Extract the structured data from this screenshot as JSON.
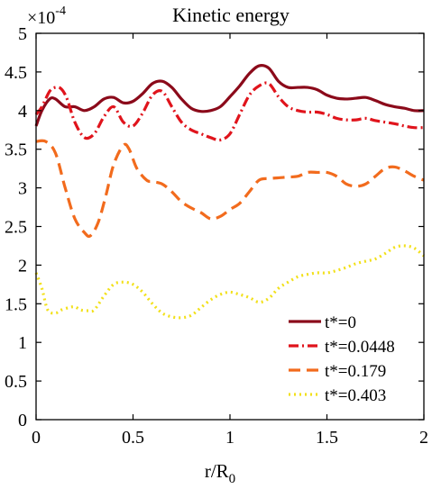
{
  "chart_data": {
    "type": "line",
    "title": "Kinetic energy",
    "xlabel": "r/R",
    "xlabel_sub": "0",
    "ylabel": "",
    "exponent": {
      "base": "×10",
      "power": "-4"
    },
    "xlim": [
      0,
      2
    ],
    "ylim": [
      0,
      5
    ],
    "xticks": [
      0,
      0.5,
      1,
      1.5,
      2
    ],
    "xtick_labels": [
      "0",
      "0.5",
      "1",
      "1.5",
      "2"
    ],
    "yticks": [
      0,
      0.5,
      1,
      1.5,
      2,
      2.5,
      3,
      3.5,
      4,
      4.5,
      5
    ],
    "ytick_labels": [
      "0",
      "0.5",
      "1",
      "1.5",
      "2",
      "2.5",
      "3",
      "3.5",
      "4",
      "4.5",
      "5"
    ],
    "grid": false,
    "legend_position": "bottom-right",
    "series": [
      {
        "name": "t*=0",
        "color": "#8b0a1a",
        "dash": "solid",
        "x": [
          0,
          0.03,
          0.07,
          0.1,
          0.15,
          0.2,
          0.25,
          0.3,
          0.35,
          0.4,
          0.45,
          0.5,
          0.55,
          0.6,
          0.65,
          0.7,
          0.75,
          0.8,
          0.85,
          0.9,
          0.95,
          1.0,
          1.05,
          1.1,
          1.15,
          1.2,
          1.25,
          1.3,
          1.35,
          1.4,
          1.45,
          1.5,
          1.55,
          1.6,
          1.65,
          1.7,
          1.75,
          1.8,
          1.85,
          1.9,
          1.95,
          2.0
        ],
        "y": [
          3.8,
          4.0,
          4.15,
          4.15,
          4.05,
          4.05,
          4.0,
          4.05,
          4.15,
          4.17,
          4.1,
          4.12,
          4.22,
          4.35,
          4.38,
          4.3,
          4.15,
          4.03,
          3.99,
          4.0,
          4.05,
          4.18,
          4.32,
          4.48,
          4.58,
          4.55,
          4.38,
          4.3,
          4.3,
          4.3,
          4.27,
          4.2,
          4.16,
          4.15,
          4.16,
          4.17,
          4.13,
          4.08,
          4.05,
          4.03,
          4.0,
          4.0
        ]
      },
      {
        "name": "t*=0.0448",
        "color": "#e0141c",
        "dash": "dashdot",
        "x": [
          0,
          0.03,
          0.07,
          0.1,
          0.13,
          0.16,
          0.2,
          0.25,
          0.3,
          0.35,
          0.4,
          0.45,
          0.5,
          0.55,
          0.6,
          0.65,
          0.7,
          0.75,
          0.8,
          0.85,
          0.9,
          0.95,
          1.0,
          1.05,
          1.1,
          1.15,
          1.2,
          1.25,
          1.3,
          1.35,
          1.4,
          1.45,
          1.5,
          1.55,
          1.6,
          1.65,
          1.7,
          1.75,
          1.8,
          1.85,
          1.9,
          1.95,
          2.0
        ],
        "y": [
          3.95,
          4.05,
          4.25,
          4.3,
          4.28,
          4.15,
          3.85,
          3.65,
          3.7,
          3.92,
          4.05,
          3.85,
          3.8,
          3.97,
          4.2,
          4.25,
          4.05,
          3.85,
          3.75,
          3.7,
          3.65,
          3.62,
          3.7,
          3.95,
          4.2,
          4.32,
          4.35,
          4.18,
          4.05,
          4.0,
          3.98,
          3.98,
          3.95,
          3.9,
          3.88,
          3.88,
          3.9,
          3.87,
          3.85,
          3.83,
          3.8,
          3.78,
          3.78
        ]
      },
      {
        "name": "t*=0.179",
        "color": "#f26b1d",
        "dash": "dashed",
        "x": [
          0,
          0.05,
          0.1,
          0.15,
          0.2,
          0.25,
          0.28,
          0.32,
          0.36,
          0.4,
          0.45,
          0.48,
          0.52,
          0.57,
          0.6,
          0.65,
          0.7,
          0.75,
          0.8,
          0.85,
          0.9,
          0.95,
          1.0,
          1.05,
          1.1,
          1.15,
          1.2,
          1.25,
          1.3,
          1.35,
          1.4,
          1.45,
          1.5,
          1.55,
          1.6,
          1.65,
          1.7,
          1.75,
          1.8,
          1.85,
          1.9,
          1.95,
          2.0
        ],
        "y": [
          3.6,
          3.6,
          3.45,
          3.0,
          2.6,
          2.42,
          2.38,
          2.55,
          2.9,
          3.3,
          3.55,
          3.5,
          3.25,
          3.1,
          3.08,
          3.05,
          2.95,
          2.82,
          2.74,
          2.68,
          2.6,
          2.63,
          2.72,
          2.8,
          2.95,
          3.1,
          3.12,
          3.13,
          3.14,
          3.15,
          3.2,
          3.2,
          3.2,
          3.15,
          3.05,
          3.02,
          3.05,
          3.15,
          3.25,
          3.27,
          3.22,
          3.15,
          3.1
        ]
      },
      {
        "name": "t*=0.403",
        "color": "#f2e01a",
        "dash": "dotted",
        "x": [
          0,
          0.03,
          0.06,
          0.1,
          0.13,
          0.17,
          0.2,
          0.23,
          0.27,
          0.3,
          0.35,
          0.4,
          0.45,
          0.5,
          0.55,
          0.6,
          0.65,
          0.7,
          0.75,
          0.8,
          0.85,
          0.9,
          0.95,
          1.0,
          1.05,
          1.1,
          1.15,
          1.2,
          1.25,
          1.3,
          1.35,
          1.4,
          1.45,
          1.5,
          1.55,
          1.6,
          1.65,
          1.7,
          1.75,
          1.8,
          1.85,
          1.9,
          1.95,
          2.0
        ],
        "y": [
          1.9,
          1.7,
          1.42,
          1.38,
          1.42,
          1.45,
          1.46,
          1.42,
          1.41,
          1.42,
          1.6,
          1.75,
          1.78,
          1.75,
          1.65,
          1.5,
          1.38,
          1.33,
          1.32,
          1.35,
          1.45,
          1.55,
          1.62,
          1.65,
          1.62,
          1.58,
          1.52,
          1.57,
          1.7,
          1.78,
          1.85,
          1.88,
          1.9,
          1.9,
          1.93,
          1.97,
          2.02,
          2.05,
          2.08,
          2.15,
          2.23,
          2.25,
          2.22,
          2.12
        ]
      }
    ]
  }
}
